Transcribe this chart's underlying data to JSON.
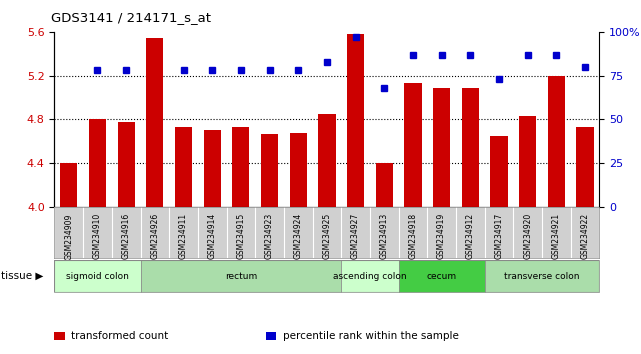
{
  "title": "GDS3141 / 214171_s_at",
  "samples": [
    "GSM234909",
    "GSM234910",
    "GSM234916",
    "GSM234926",
    "GSM234911",
    "GSM234914",
    "GSM234915",
    "GSM234923",
    "GSM234924",
    "GSM234925",
    "GSM234927",
    "GSM234913",
    "GSM234918",
    "GSM234919",
    "GSM234912",
    "GSM234917",
    "GSM234920",
    "GSM234921",
    "GSM234922"
  ],
  "bar_values": [
    4.4,
    4.8,
    4.78,
    5.54,
    4.73,
    4.7,
    4.73,
    4.67,
    4.68,
    4.85,
    5.58,
    4.4,
    5.13,
    5.09,
    5.09,
    4.65,
    4.83,
    5.2,
    4.73
  ],
  "dot_values": [
    null,
    78,
    78,
    null,
    78,
    78,
    78,
    78,
    78,
    83,
    97,
    68,
    87,
    87,
    87,
    73,
    87,
    87,
    80
  ],
  "ylim_left": [
    4.0,
    5.6
  ],
  "ylim_right": [
    0,
    100
  ],
  "yticks_left": [
    4.0,
    4.4,
    4.8,
    5.2,
    5.6
  ],
  "yticks_right": [
    0,
    25,
    50,
    75,
    100
  ],
  "hlines": [
    4.4,
    4.8,
    5.2
  ],
  "bar_color": "#cc0000",
  "dot_color": "#0000cc",
  "tissue_groups": [
    {
      "label": "sigmoid colon",
      "start": 0,
      "end": 3,
      "color": "#ccffcc"
    },
    {
      "label": "rectum",
      "start": 3,
      "end": 10,
      "color": "#aaddaa"
    },
    {
      "label": "ascending colon",
      "start": 10,
      "end": 12,
      "color": "#ccffcc"
    },
    {
      "label": "cecum",
      "start": 12,
      "end": 15,
      "color": "#44cc44"
    },
    {
      "label": "transverse colon",
      "start": 15,
      "end": 19,
      "color": "#aaddaa"
    }
  ],
  "legend_items": [
    {
      "label": "transformed count",
      "color": "#cc0000"
    },
    {
      "label": "percentile rank within the sample",
      "color": "#0000cc"
    }
  ],
  "tick_bg_color": "#d0d0d0",
  "plot_bg_color": "#ffffff"
}
